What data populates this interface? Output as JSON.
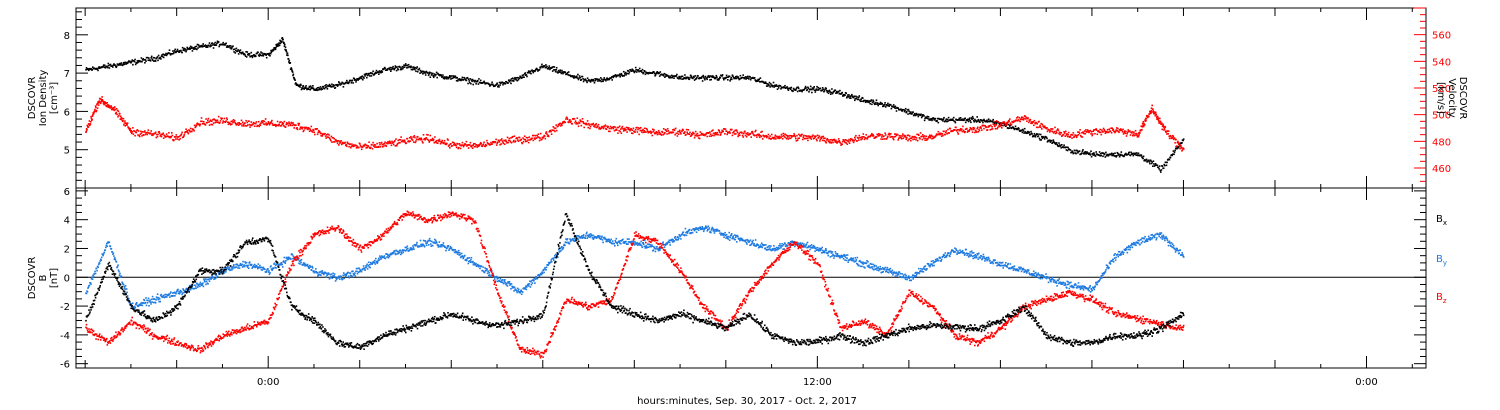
{
  "chart_data": [
    {
      "type": "scatter",
      "panel": "top",
      "ylabel_lines": [
        "DSCOVR",
        "Ion Density",
        "[cm⁻³]"
      ],
      "y2label_lines": [
        "DSCOVR",
        "Velocity",
        "[km/s]"
      ],
      "ylim": [
        4.0,
        8.7
      ],
      "y2lim": [
        445,
        580
      ],
      "yticks": [
        "5",
        "6",
        "7",
        "8"
      ],
      "y2ticks": [
        "460",
        "480",
        "500",
        "520",
        "540",
        "560"
      ],
      "xlim_hours": [
        -4.2,
        25.3
      ],
      "colors": {
        "density": "#000000",
        "velocity": "#ff0000"
      },
      "series": [
        {
          "key": "density",
          "axis": "left",
          "color": "#000000",
          "x": [
            -4.0,
            -3.5,
            -3.0,
            -2.5,
            -2.0,
            -1.5,
            -1.0,
            -0.5,
            0.0,
            0.3,
            0.6,
            1.0,
            1.5,
            2.0,
            2.5,
            3.0,
            3.5,
            4.0,
            4.5,
            5.0,
            5.5,
            6.0,
            6.5,
            7.0,
            7.5,
            8.0,
            8.5,
            9.0,
            9.5,
            10.0,
            10.5,
            11.0,
            11.5,
            12.0,
            12.5,
            13.0,
            13.5,
            14.0,
            14.5,
            15.0,
            15.5,
            16.0,
            16.5,
            17.0,
            17.5,
            18.0,
            18.5,
            19.0,
            19.5,
            20.0
          ],
          "y": [
            7.1,
            7.2,
            7.3,
            7.4,
            7.6,
            7.7,
            7.8,
            7.5,
            7.5,
            7.9,
            6.7,
            6.6,
            6.7,
            6.9,
            7.1,
            7.2,
            7.0,
            6.9,
            6.8,
            6.7,
            6.9,
            7.2,
            7.0,
            6.8,
            6.9,
            7.1,
            7.0,
            6.9,
            6.9,
            6.9,
            6.9,
            6.7,
            6.6,
            6.6,
            6.5,
            6.3,
            6.2,
            6.0,
            5.8,
            5.8,
            5.8,
            5.7,
            5.5,
            5.3,
            5.0,
            4.9,
            4.9,
            4.9,
            4.5,
            5.3
          ]
        },
        {
          "key": "velocity",
          "axis": "right",
          "color": "#ff0000",
          "x": [
            -4.0,
            -3.7,
            -3.4,
            -3.0,
            -2.5,
            -2.0,
            -1.5,
            -1.0,
            -0.5,
            0.0,
            0.5,
            1.0,
            1.5,
            2.0,
            2.5,
            3.0,
            3.5,
            4.0,
            4.5,
            5.0,
            5.5,
            6.0,
            6.5,
            7.0,
            7.5,
            8.0,
            8.5,
            9.0,
            9.5,
            10.0,
            10.5,
            11.0,
            11.5,
            12.0,
            12.5,
            13.0,
            13.5,
            14.0,
            14.5,
            15.0,
            15.5,
            16.0,
            16.5,
            17.0,
            17.5,
            18.0,
            18.5,
            19.0,
            19.3,
            19.6,
            20.0
          ],
          "y": [
            488,
            512,
            505,
            488,
            486,
            483,
            495,
            496,
            494,
            494,
            493,
            489,
            480,
            476,
            478,
            481,
            483,
            478,
            477,
            480,
            482,
            484,
            497,
            493,
            490,
            489,
            487,
            488,
            485,
            488,
            486,
            484,
            484,
            483,
            480,
            484,
            485,
            483,
            484,
            489,
            490,
            493,
            498,
            490,
            485,
            488,
            489,
            486,
            505,
            488,
            474
          ]
        }
      ]
    },
    {
      "type": "scatter",
      "panel": "bottom",
      "ylabel_lines": [
        "DSCOVR",
        "B",
        "[nT]"
      ],
      "ylim": [
        -6.3,
        6.2
      ],
      "yticks": [
        "-6",
        "-4",
        "-2",
        "0",
        "2",
        "4",
        "6"
      ],
      "xlim_hours": [
        -4.2,
        25.3
      ],
      "xtick_labels": [
        "0:00",
        "12:00",
        "0:00"
      ],
      "xtick_hours": [
        0,
        12,
        24
      ],
      "xtitle": "hours:minutes, Sep. 30, 2017 - Oct.  2, 2017",
      "zero_line": true,
      "legend": [
        {
          "label": "B",
          "sub": "x",
          "color": "#000000"
        },
        {
          "label": "B",
          "sub": "y",
          "color": "#1e7be0"
        },
        {
          "label": "B",
          "sub": "z",
          "color": "#ff0000"
        }
      ],
      "series": [
        {
          "key": "Bx",
          "color": "#000000",
          "x": [
            -4.0,
            -3.5,
            -3.0,
            -2.5,
            -2.0,
            -1.5,
            -1.0,
            -0.5,
            0.0,
            0.5,
            1.0,
            1.5,
            2.0,
            2.5,
            3.0,
            3.5,
            4.0,
            4.5,
            5.0,
            5.5,
            6.0,
            6.5,
            7.0,
            7.5,
            8.0,
            8.5,
            9.0,
            9.5,
            10.0,
            10.5,
            11.0,
            11.5,
            12.0,
            12.5,
            13.0,
            13.5,
            14.0,
            14.5,
            15.0,
            15.5,
            16.0,
            16.5,
            17.0,
            17.5,
            18.0,
            18.5,
            19.0,
            19.5,
            20.0
          ],
          "y": [
            -3.0,
            1.0,
            -2.0,
            -3.0,
            -2.0,
            0.5,
            0.5,
            2.5,
            2.7,
            -2.0,
            -3.0,
            -4.5,
            -4.8,
            -4.0,
            -3.5,
            -3.0,
            -2.5,
            -3.0,
            -3.3,
            -3.0,
            -2.5,
            4.5,
            0.5,
            -2.0,
            -2.5,
            -3.0,
            -2.5,
            -3.0,
            -3.5,
            -2.5,
            -4.0,
            -4.5,
            -4.4,
            -4.0,
            -4.5,
            -4.0,
            -3.5,
            -3.3,
            -3.4,
            -3.5,
            -3.0,
            -2.0,
            -4.0,
            -4.5,
            -4.5,
            -4.0,
            -4.0,
            -3.5,
            -2.5
          ]
        },
        {
          "key": "By",
          "color": "#1e7be0",
          "x": [
            -4.0,
            -3.5,
            -3.0,
            -2.5,
            -2.0,
            -1.5,
            -1.0,
            -0.5,
            0.0,
            0.5,
            1.0,
            1.5,
            2.0,
            2.5,
            3.0,
            3.5,
            4.0,
            4.5,
            5.0,
            5.5,
            6.0,
            6.5,
            7.0,
            7.5,
            8.0,
            8.5,
            9.0,
            9.5,
            10.0,
            10.5,
            11.0,
            11.5,
            12.0,
            12.5,
            13.0,
            13.5,
            14.0,
            14.5,
            15.0,
            15.5,
            16.0,
            16.5,
            17.0,
            17.5,
            18.0,
            18.5,
            19.0,
            19.5,
            20.0
          ],
          "y": [
            -1.0,
            2.5,
            -2.0,
            -1.5,
            -1.0,
            -0.5,
            0.5,
            1.0,
            0.5,
            1.5,
            0.5,
            0.0,
            0.5,
            1.5,
            2.0,
            2.5,
            2.0,
            1.0,
            0.0,
            -1.0,
            0.5,
            2.5,
            3.0,
            2.5,
            2.5,
            2.0,
            3.0,
            3.5,
            3.0,
            2.5,
            2.0,
            2.5,
            2.0,
            1.5,
            1.0,
            0.5,
            0.0,
            1.0,
            2.0,
            1.5,
            1.0,
            0.5,
            0.0,
            -0.5,
            -0.8,
            1.5,
            2.5,
            3.0,
            1.5
          ]
        },
        {
          "key": "Bz",
          "color": "#ff0000",
          "x": [
            -4.0,
            -3.5,
            -3.0,
            -2.5,
            -2.0,
            -1.5,
            -1.0,
            -0.5,
            0.0,
            0.5,
            1.0,
            1.5,
            2.0,
            2.5,
            3.0,
            3.5,
            4.0,
            4.5,
            5.0,
            5.5,
            6.0,
            6.5,
            7.0,
            7.5,
            8.0,
            8.5,
            9.0,
            9.5,
            10.0,
            10.5,
            11.0,
            11.5,
            12.0,
            12.5,
            13.0,
            13.5,
            14.0,
            14.5,
            15.0,
            15.5,
            16.0,
            16.5,
            17.0,
            17.5,
            18.0,
            18.5,
            19.0,
            19.5,
            20.0
          ],
          "y": [
            -3.5,
            -4.5,
            -3.0,
            -4.0,
            -4.5,
            -5.0,
            -4.0,
            -3.5,
            -3.0,
            1.0,
            3.0,
            3.5,
            2.0,
            3.0,
            4.5,
            4.0,
            4.5,
            4.0,
            -1.0,
            -5.0,
            -5.3,
            -1.5,
            -2.0,
            -1.5,
            3.0,
            2.5,
            0.5,
            -2.0,
            -3.5,
            -1.0,
            1.0,
            2.5,
            1.0,
            -3.5,
            -3.0,
            -4.0,
            -1.0,
            -2.0,
            -4.0,
            -4.5,
            -3.5,
            -2.0,
            -1.5,
            -1.0,
            -1.5,
            -2.5,
            -2.8,
            -3.2,
            -3.5
          ]
        }
      ]
    }
  ]
}
